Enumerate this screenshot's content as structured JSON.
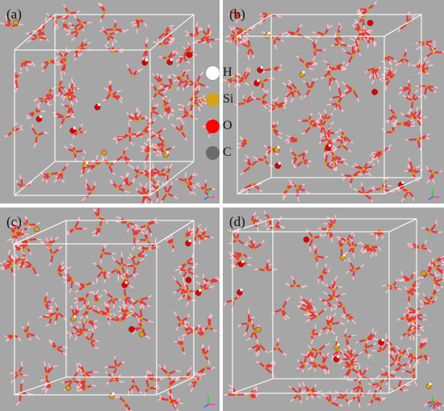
{
  "panels": [
    {
      "id": "a",
      "label": "(a)"
    },
    {
      "id": "b",
      "label": "(b)"
    },
    {
      "id": "c",
      "label": "(c)"
    },
    {
      "id": "d",
      "label": "(d)"
    }
  ],
  "legend": [
    {
      "label": "H",
      "color": "#ffffff"
    },
    {
      "label": "Si",
      "color": "#d4a21a"
    },
    {
      "label": "O",
      "color": "#ff0000"
    },
    {
      "label": "C",
      "color": "#6b6b6b"
    }
  ],
  "colors": {
    "background": "#a6a6a6",
    "bond_red": "#e8343a",
    "bond_pink": "#f6c6c6",
    "silicon": "#d4a21a",
    "oxygen": "#d80000",
    "hydrogen": "#ffffff",
    "box_line": "#ffffff"
  }
}
